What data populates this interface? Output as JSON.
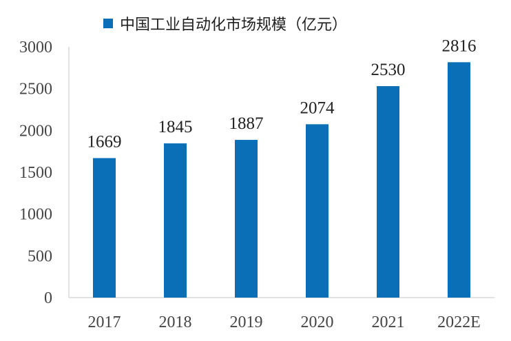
{
  "chart_data": {
    "type": "bar",
    "title": "",
    "categories": [
      "2017",
      "2018",
      "2019",
      "2020",
      "2021",
      "2022E"
    ],
    "series": [
      {
        "name": "中国工业自动化市场规模（亿元）",
        "values": [
          1669,
          1845,
          1887,
          2074,
          2530,
          2816
        ]
      }
    ],
    "data_labels": [
      "1669",
      "1845",
      "1887",
      "2074",
      "2530",
      "2816"
    ],
    "y_ticks": [
      "0",
      "500",
      "1000",
      "1500",
      "2000",
      "2500",
      "3000"
    ],
    "ylim": [
      0,
      3000
    ],
    "xlabel": "",
    "ylabel": "",
    "grid": false,
    "legend_position": "top",
    "colors": {
      "bar": "#0B6FB8",
      "axis": "#d9d9d9"
    }
  }
}
